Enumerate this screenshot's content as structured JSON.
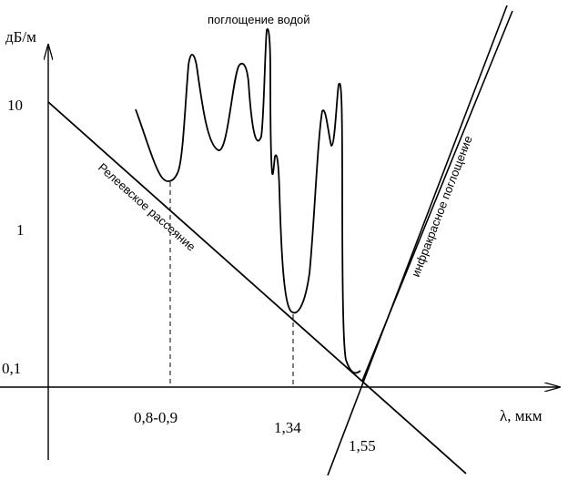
{
  "y_axis": {
    "unit_label": "дБ/м",
    "tick_labels": [
      "10",
      "1",
      "0,1"
    ]
  },
  "x_axis": {
    "unit_label": "λ, мкм",
    "tick_labels": [
      "0,8-0,9",
      "1,34",
      "1,55"
    ]
  },
  "annotations": {
    "water_absorption": "поглощение водой",
    "rayleigh_scattering": "Релеевское рассеяние",
    "infrared_absorption": "инфракрасное поглощение"
  }
}
